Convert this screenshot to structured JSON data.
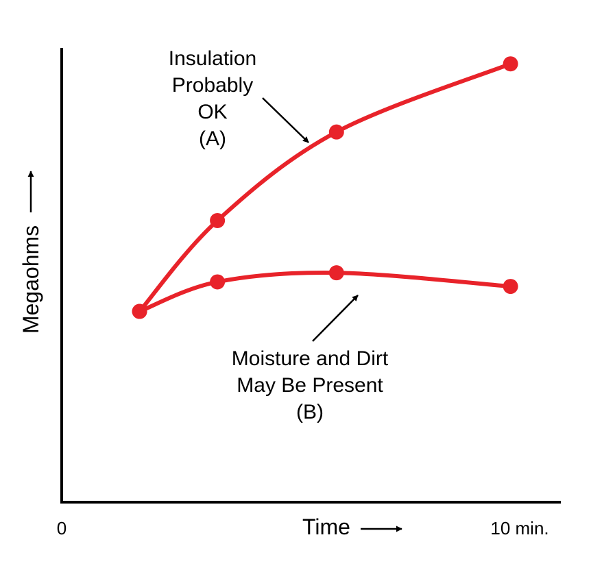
{
  "chart_data": {
    "type": "line",
    "title": "",
    "xlabel": "Time",
    "ylabel": "Megaohms",
    "x_tick_labels": [
      {
        "x": 0,
        "label": "0"
      },
      {
        "x": 10,
        "label": "10 min."
      }
    ],
    "xlim": [
      0,
      10
    ],
    "ylim": [
      0,
      10
    ],
    "grid": false,
    "axis_arrow": "⟶",
    "series": [
      {
        "label_lines": [
          "Insulation",
          "Probably",
          "OK",
          "(A)"
        ],
        "color": "#e8232a",
        "points": [
          {
            "x": 1.7,
            "y": 4.2
          },
          {
            "x": 3.4,
            "y": 6.2
          },
          {
            "x": 6.0,
            "y": 8.15
          },
          {
            "x": 9.8,
            "y": 9.65
          }
        ]
      },
      {
        "label_lines": [
          "Moisture and Dirt",
          "May Be Present",
          "(B)"
        ],
        "color": "#e8232a",
        "points": [
          {
            "x": 1.7,
            "y": 4.2
          },
          {
            "x": 3.4,
            "y": 4.85
          },
          {
            "x": 6.0,
            "y": 5.05
          },
          {
            "x": 9.8,
            "y": 4.75
          }
        ]
      }
    ]
  }
}
